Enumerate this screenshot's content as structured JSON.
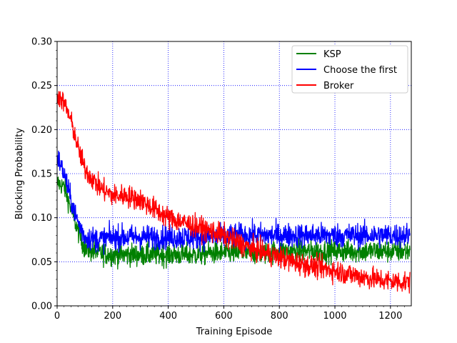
{
  "chart_data": {
    "type": "line",
    "xlabel": "Training Episode",
    "ylabel": "Blocking Probability",
    "xlim": [
      0,
      1275
    ],
    "ylim": [
      0,
      0.3
    ],
    "x_ticks": [
      0,
      200,
      400,
      600,
      800,
      1000,
      1200
    ],
    "x_tick_labels": [
      "0",
      "200",
      "400",
      "600",
      "800",
      "1000",
      "1200"
    ],
    "y_ticks": [
      0,
      0.05,
      0.1,
      0.15,
      0.2,
      0.25,
      0.3
    ],
    "y_tick_labels": [
      "0.00",
      "0.05",
      "0.10",
      "0.15",
      "0.20",
      "0.25",
      "0.30"
    ],
    "grid": true,
    "legend_position": "top-right",
    "x": [
      0,
      25,
      50,
      75,
      100,
      150,
      200,
      250,
      300,
      350,
      400,
      450,
      500,
      550,
      600,
      650,
      700,
      750,
      800,
      850,
      900,
      950,
      1000,
      1050,
      1100,
      1150,
      1200,
      1250,
      1270
    ],
    "series": [
      {
        "name": "KSP",
        "color": "#008000",
        "values": [
          0.14,
          0.135,
          0.11,
          0.085,
          0.065,
          0.06,
          0.058,
          0.058,
          0.058,
          0.058,
          0.058,
          0.058,
          0.058,
          0.06,
          0.06,
          0.06,
          0.06,
          0.06,
          0.062,
          0.062,
          0.062,
          0.062,
          0.062,
          0.062,
          0.062,
          0.062,
          0.062,
          0.062,
          0.062
        ],
        "noise": 0.012
      },
      {
        "name": "Choose the first",
        "color": "#0000ff",
        "values": [
          0.17,
          0.15,
          0.12,
          0.095,
          0.078,
          0.075,
          0.078,
          0.078,
          0.078,
          0.078,
          0.078,
          0.078,
          0.078,
          0.078,
          0.078,
          0.08,
          0.08,
          0.08,
          0.08,
          0.08,
          0.08,
          0.08,
          0.08,
          0.08,
          0.08,
          0.08,
          0.08,
          0.08,
          0.08
        ],
        "noise": 0.013
      },
      {
        "name": "Broker",
        "color": "#ff0000",
        "values": [
          0.24,
          0.23,
          0.21,
          0.18,
          0.155,
          0.135,
          0.125,
          0.125,
          0.12,
          0.11,
          0.1,
          0.095,
          0.09,
          0.085,
          0.08,
          0.072,
          0.065,
          0.06,
          0.055,
          0.05,
          0.046,
          0.043,
          0.04,
          0.036,
          0.033,
          0.03,
          0.028,
          0.027,
          0.027
        ],
        "noise": 0.012
      }
    ]
  }
}
